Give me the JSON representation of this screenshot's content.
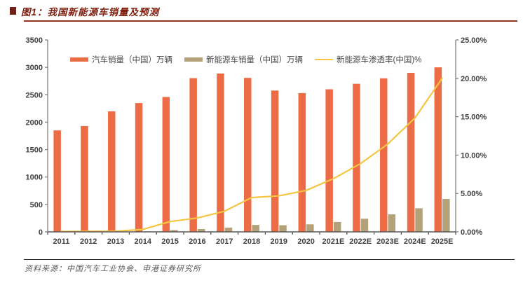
{
  "page": {
    "figure_title": "图1：我国新能源车销量及预测",
    "source_text": "资料来源：中国汽车工业协会、申港证券研究所"
  },
  "colors": {
    "title_text": "#7c1d0e",
    "title_rule": "#953121",
    "auto_bar": "#ed6c46",
    "nev_bar": "#b3a17a",
    "penetration_line": "#f4c642",
    "axis_line": "#7f7f7f",
    "tick_label": "#404040",
    "legend_text": "#474747",
    "footer_rule": "#262626",
    "source_text": "#595959"
  },
  "chart_data": {
    "type": "bar",
    "subtype": "combo-bar-line-dual-axis",
    "grid": false,
    "legend_position": "top-inside",
    "categories": [
      "2011",
      "2012",
      "2013",
      "2014",
      "2015",
      "2016",
      "2017",
      "2018",
      "2019",
      "2020",
      "2021E",
      "2022E",
      "2023E",
      "2024E",
      "2025E"
    ],
    "series": [
      {
        "name": "汽车销量（中国）万辆",
        "type": "bar",
        "axis": "left",
        "color": "#ed6c46",
        "values": [
          1850,
          1930,
          2198,
          2349,
          2460,
          2803,
          2888,
          2808,
          2577,
          2531,
          2600,
          2700,
          2800,
          2900,
          3000
        ]
      },
      {
        "name": "新能源车销量（中国）万辆",
        "type": "bar",
        "axis": "left",
        "color": "#b3a17a",
        "values": [
          1,
          1.3,
          1.8,
          7.5,
          33,
          51,
          78,
          126,
          121,
          137,
          180,
          240,
          320,
          430,
          600
        ]
      },
      {
        "name": "新能源车渗透率(中国)%",
        "type": "line",
        "axis": "right",
        "color": "#f4c642",
        "values": [
          0.05,
          0.07,
          0.08,
          0.32,
          1.34,
          1.81,
          2.69,
          4.47,
          4.68,
          5.4,
          6.92,
          8.89,
          11.43,
          14.83,
          20.0
        ]
      }
    ],
    "axes": {
      "left": {
        "min": 0,
        "max": 3500,
        "step": 500,
        "tick_labels": [
          "0",
          "500",
          "1000",
          "1500",
          "2000",
          "2500",
          "3000",
          "3500"
        ]
      },
      "right": {
        "min": 0,
        "max": 25,
        "step": 5,
        "tick_labels": [
          "0.00%",
          "5.00%",
          "10.00%",
          "15.00%",
          "20.00%",
          "25.00%"
        ]
      }
    }
  }
}
